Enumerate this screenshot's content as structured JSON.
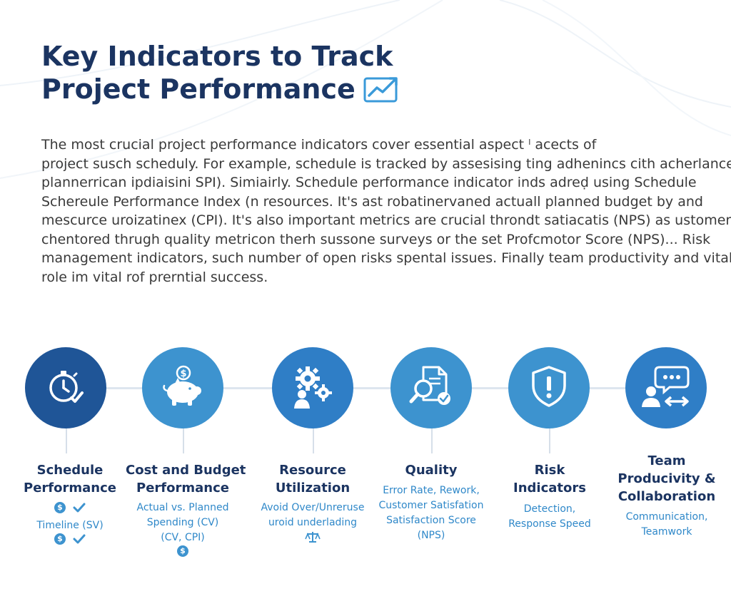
{
  "title": {
    "line1": "Key Indicators to Track",
    "line2": "Project Performance"
  },
  "intro": {
    "lines": [
      "The most crucial project performance indicators cover essential aspect ˡ acects of",
      "project susch scheduly. For example, schedule is tracked by assesising ting adhenincs cith acherlance to",
      "plannerrican ipdiaisini SPI). Simiairly. Schedule performance indicator inds adreḍ using Schedule",
      "Schereule Performance Index (n resources. It's ast robatinervaned actuall planned budget by and",
      "mescurce uroizatinex (CPI). It's also important metrics are crucial throndt satiacatis (NPS) as ustomer",
      "chentored thrugh quality metricon therh sussone surveys or the set Profcmotor Score (NPS)... Risk",
      "management indicators, such number of open risks spental issues. Finally team productivity and vital",
      "role im vital rof prerntial success."
    ]
  },
  "colors": {
    "title": "#1b3461",
    "label": "#1b3461",
    "description": "#2f88c9",
    "connector": "#dde6ef",
    "circle_dark": "#1f5597",
    "circle_mid": "#2f7ec6",
    "circle_light": "#3d93cf"
  },
  "indicators": [
    {
      "icon": "stopwatch-check-icon",
      "label": [
        "Schedule",
        "Performance"
      ],
      "description": [
        "Timeline (SV)"
      ],
      "mini_icons": [
        "dollar-badge-icon",
        "check-icon"
      ]
    },
    {
      "icon": "piggy-bank-icon",
      "label": [
        "Cost and Budget",
        "Performance"
      ],
      "description": [
        "Actual vs. Planned",
        "Spending (CV)",
        "(CV, CPI)"
      ],
      "mini_icons": [
        "dollar-badge-icon"
      ]
    },
    {
      "icon": "gears-person-icon",
      "label": [
        "Resource",
        "Utilization"
      ],
      "description": [
        "Avoid Over/Unreruse",
        "uroid underlading"
      ],
      "mini_icons": [
        "balance-scale-icon"
      ]
    },
    {
      "icon": "document-magnifier-icon",
      "label": [
        "Quality"
      ],
      "description": [
        "Error Rate, Rework,",
        "Customer Satisfation",
        "Satisfaction Score",
        "(NPS)"
      ],
      "mini_icons": []
    },
    {
      "icon": "shield-alert-icon",
      "label": [
        "Risk",
        "Indicators"
      ],
      "description": [
        "Detection,",
        "Response Speed"
      ],
      "mini_icons": []
    },
    {
      "icon": "chat-people-icon",
      "label": [
        "Team",
        "Producivity &",
        "Collaboration"
      ],
      "description": [
        "Communication,",
        "Teamwork"
      ],
      "mini_icons": []
    }
  ]
}
